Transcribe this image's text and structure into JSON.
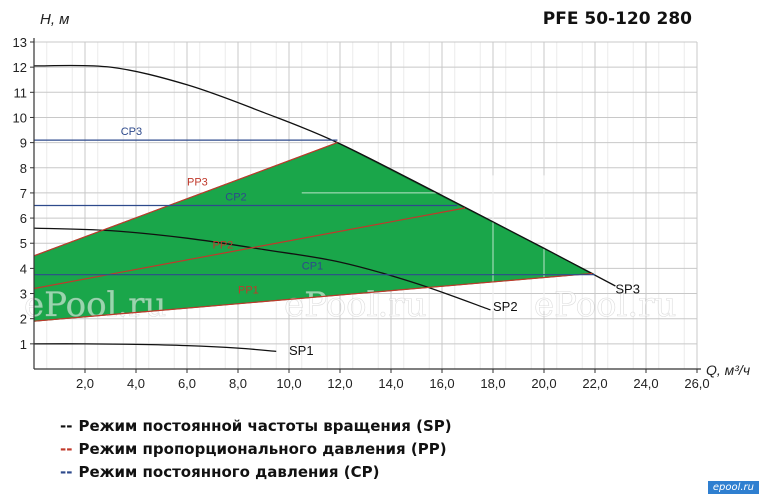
{
  "chart_data": {
    "type": "line",
    "title": "PFE 50-120 280",
    "xlabel": "Q, м³/ч",
    "ylabel": "H, м",
    "xlim": [
      0,
      26
    ],
    "ylim": [
      0,
      13
    ],
    "x_ticks": [
      "2,0",
      "4,0",
      "6,0",
      "8,0",
      "10,0",
      "12,0",
      "14,0",
      "16,0",
      "18,0",
      "20,0",
      "22,0",
      "24,0",
      "26,0"
    ],
    "y_ticks": [
      "1",
      "2",
      "3",
      "4",
      "5",
      "6",
      "7",
      "8",
      "9",
      "10",
      "11",
      "12",
      "13"
    ],
    "x_tick_values": [
      2,
      4,
      6,
      8,
      10,
      12,
      14,
      16,
      18,
      20,
      22,
      24,
      26
    ],
    "y_tick_values": [
      1,
      2,
      3,
      4,
      5,
      6,
      7,
      8,
      9,
      10,
      11,
      12,
      13
    ],
    "grid": true,
    "operating_region": {
      "color": "#1aa64a",
      "points": [
        [
          0,
          1.9
        ],
        [
          21.9,
          3.8
        ],
        [
          11.9,
          9.0
        ],
        [
          0,
          4.5
        ]
      ]
    },
    "series": [
      {
        "name": "SP1",
        "color": "#111111",
        "points": [
          [
            0,
            1.0
          ],
          [
            2,
            1.0
          ],
          [
            4,
            0.98
          ],
          [
            6,
            0.93
          ],
          [
            8,
            0.83
          ],
          [
            9.5,
            0.7
          ]
        ],
        "label_at": [
          10.0,
          0.55
        ]
      },
      {
        "name": "SP2",
        "color": "#111111",
        "points": [
          [
            0,
            5.6
          ],
          [
            3,
            5.5
          ],
          [
            6,
            5.2
          ],
          [
            9,
            4.75
          ],
          [
            12,
            4.25
          ],
          [
            15,
            3.4
          ],
          [
            17.9,
            2.35
          ]
        ],
        "label_at": [
          18.0,
          2.3
        ]
      },
      {
        "name": "SP3",
        "color": "#111111",
        "points": [
          [
            0,
            12.05
          ],
          [
            3,
            12.0
          ],
          [
            6,
            11.3
          ],
          [
            9,
            10.2
          ],
          [
            11.9,
            9.0
          ],
          [
            16,
            6.9
          ],
          [
            20,
            4.8
          ],
          [
            22.8,
            3.3
          ]
        ],
        "label_at": [
          22.8,
          3.0
        ]
      },
      {
        "name": "PP3",
        "color": "#c0392b",
        "points": [
          [
            0,
            4.5
          ],
          [
            11.9,
            9.0
          ]
        ],
        "label_at": [
          6.0,
          7.3
        ]
      },
      {
        "name": "PP2",
        "color": "#c0392b",
        "points": [
          [
            0,
            3.2
          ],
          [
            16.9,
            6.4
          ]
        ],
        "label_at": [
          7.0,
          4.8
        ]
      },
      {
        "name": "PP1",
        "color": "#c0392b",
        "points": [
          [
            0,
            1.9
          ],
          [
            21.9,
            3.8
          ]
        ],
        "label_at": [
          8.0,
          3.0
        ]
      },
      {
        "name": "CP3",
        "color": "#2e4a8c",
        "points": [
          [
            0,
            9.1
          ],
          [
            11.9,
            9.1
          ]
        ],
        "label_at": [
          3.4,
          9.3
        ]
      },
      {
        "name": "CP2",
        "color": "#2e4a8c",
        "points": [
          [
            0,
            6.5
          ],
          [
            16.6,
            6.5
          ]
        ],
        "label_at": [
          7.5,
          6.7
        ]
      },
      {
        "name": "CP1",
        "color": "#2e4a8c",
        "points": [
          [
            0,
            3.75
          ],
          [
            22.0,
            3.75
          ]
        ],
        "label_at": [
          10.5,
          3.95
        ]
      }
    ]
  },
  "legend": [
    {
      "dash": "--",
      "color": "#111111",
      "label": "Режим постоянной частоты вращения (SP)"
    },
    {
      "dash": "--",
      "color": "#c0392b",
      "label": "Режим пропорционального давления (PP)"
    },
    {
      "dash": "--",
      "color": "#2e4a8c",
      "label": "Режим постоянного давления (CP)"
    }
  ],
  "watermark": "ePool.ru",
  "corner_logo": "epool.ru"
}
